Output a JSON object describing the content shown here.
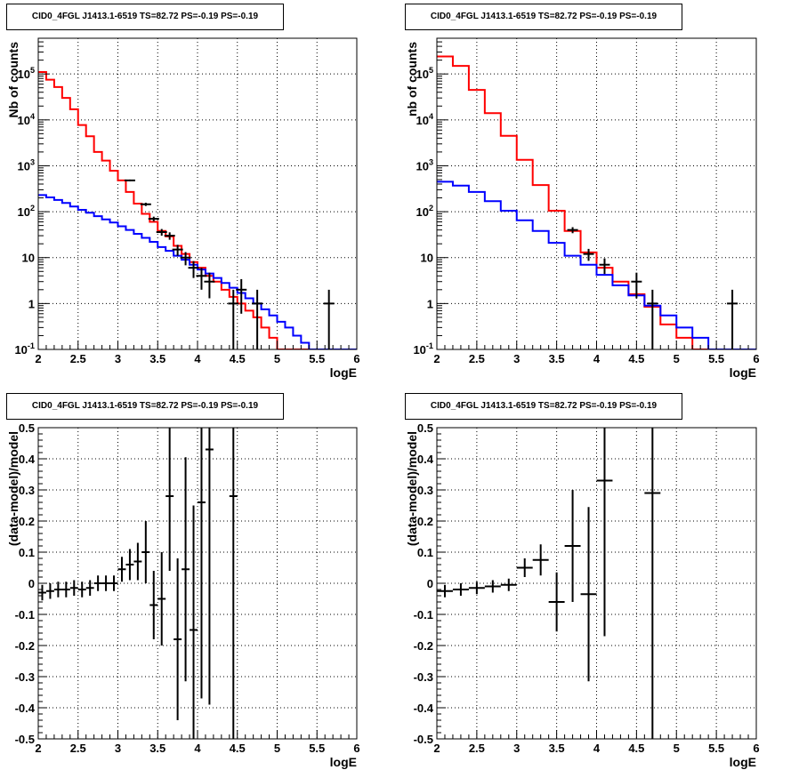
{
  "chart_data": [
    {
      "type": "line",
      "title": "CID0_4FGL J1413.1-6519 TS=82.72 PS=-0.19 PS=-0.19",
      "xlabel": "logE",
      "ylabel": "Nb of counts",
      "log_y": true,
      "xlim": [
        2,
        6
      ],
      "ylim": [
        0.1,
        600000
      ],
      "grid": true,
      "x_ticks": [
        "2",
        "2.5",
        "3",
        "3.5",
        "4",
        "4.5",
        "5",
        "5.5",
        "6"
      ],
      "y_ticks": [
        "10^{-1}",
        "1",
        "10",
        "10^{2}",
        "10^{3}",
        "10^{4}",
        "10^{5}"
      ],
      "bin_edges": [
        2,
        2.1,
        2.2,
        2.3,
        2.4,
        2.5,
        2.6,
        2.7,
        2.8,
        2.9,
        3,
        3.1,
        3.2,
        3.3,
        3.4,
        3.5,
        3.6,
        3.7,
        3.8,
        3.9,
        4,
        4.1,
        4.2,
        4.3,
        4.4,
        4.5,
        4.6,
        4.7,
        4.8,
        4.9,
        5,
        5.1,
        5.2,
        5.3,
        5.4,
        5.5,
        5.6,
        5.7,
        5.8,
        5.9,
        6
      ],
      "series": [
        {
          "color": "#ff0000",
          "values": [
            110000,
            75000,
            52000,
            30000,
            17000,
            7700,
            4400,
            2000,
            1300,
            780,
            480,
            270,
            150,
            90,
            60,
            38,
            29,
            18,
            12,
            8,
            6,
            4,
            3,
            2,
            1.4,
            1,
            0.7,
            0.5,
            0.3,
            0.18,
            0.1,
            0.1,
            0.1,
            0.1,
            0.1,
            0.1,
            0.1,
            0.1,
            0.1,
            0.1
          ]
        },
        {
          "color": "#0000ff",
          "values": [
            230,
            205,
            180,
            155,
            130,
            110,
            95,
            80,
            68,
            58,
            48,
            40,
            33,
            27,
            22,
            17,
            14,
            11,
            9,
            7,
            5.5,
            4.5,
            3.6,
            2.8,
            2.2,
            1.7,
            1.3,
            1,
            0.75,
            0.55,
            0.4,
            0.3,
            0.2,
            0.14,
            0.1,
            0.1,
            0.1,
            0.1,
            0.1,
            0.1
          ]
        }
      ],
      "points": [
        {
          "x": 3.15,
          "y": 480,
          "dy_low": 22,
          "dy_high": 22
        },
        {
          "x": 3.35,
          "y": 145,
          "dy_low": 12,
          "dy_high": 12
        },
        {
          "x": 3.45,
          "y": 70,
          "dy_low": 8,
          "dy_high": 8
        },
        {
          "x": 3.55,
          "y": 36,
          "dy_low": 6,
          "dy_high": 6
        },
        {
          "x": 3.65,
          "y": 30,
          "dy_low": 5.5,
          "dy_high": 5.5
        },
        {
          "x": 3.75,
          "y": 15,
          "dy_low": 4,
          "dy_high": 4
        },
        {
          "x": 3.85,
          "y": 10,
          "dy_low": 3.2,
          "dy_high": 3.2
        },
        {
          "x": 3.95,
          "y": 6,
          "dy_low": 2.4,
          "dy_high": 2.4
        },
        {
          "x": 4.05,
          "y": 4,
          "dy_low": 2,
          "dy_high": 2
        },
        {
          "x": 4.15,
          "y": 3,
          "dy_low": 1.7,
          "dy_high": 1.7
        },
        {
          "x": 4.45,
          "y": 1,
          "dy_low": 1,
          "dy_high": 1
        },
        {
          "x": 4.55,
          "y": 2,
          "dy_low": 1.4,
          "dy_high": 1.4
        },
        {
          "x": 4.75,
          "y": 1,
          "dy_low": 1,
          "dy_high": 1
        },
        {
          "x": 5.65,
          "y": 1,
          "dy_low": 1,
          "dy_high": 1
        }
      ]
    },
    {
      "type": "line",
      "title": "CID0_4FGL J1413.1-6519 TS=82.72 PS=-0.19 PS=-0.19",
      "xlabel": "logE",
      "ylabel": "nb of counts",
      "log_y": true,
      "xlim": [
        2,
        6
      ],
      "ylim": [
        0.1,
        600000
      ],
      "grid": true,
      "x_ticks": [
        "2",
        "2.5",
        "3",
        "3.5",
        "4",
        "4.5",
        "5",
        "5.5",
        "6"
      ],
      "y_ticks": [
        "10^{-1}",
        "1",
        "10",
        "10^{2}",
        "10^{3}",
        "10^{4}",
        "10^{5}"
      ],
      "bin_edges": [
        2,
        2.2,
        2.4,
        2.6,
        2.8,
        3,
        3.2,
        3.4,
        3.6,
        3.8,
        4,
        4.2,
        4.4,
        4.6,
        4.8,
        5,
        5.2,
        5.4,
        5.6,
        5.8,
        6
      ],
      "series": [
        {
          "color": "#ff0000",
          "values": [
            240000,
            150000,
            45000,
            14000,
            4500,
            1350,
            380,
            105,
            38,
            13,
            6,
            3,
            1.6,
            0.85,
            0.35,
            0.18,
            0.1,
            0.1,
            0.1,
            0.1
          ]
        },
        {
          "color": "#0000ff",
          "values": [
            450,
            370,
            270,
            170,
            105,
            65,
            38,
            21,
            11,
            7,
            4.2,
            2.5,
            1.5,
            0.9,
            0.55,
            0.3,
            0.18,
            0.1,
            0.1,
            0.1
          ]
        }
      ],
      "points": [
        {
          "x": 3.7,
          "y": 40,
          "dy_low": 6,
          "dy_high": 6
        },
        {
          "x": 3.9,
          "y": 12,
          "dy_low": 3.5,
          "dy_high": 3.5
        },
        {
          "x": 4.1,
          "y": 7,
          "dy_low": 2.6,
          "dy_high": 2.6
        },
        {
          "x": 4.5,
          "y": 3,
          "dy_low": 1.7,
          "dy_high": 1.7
        },
        {
          "x": 4.7,
          "y": 1,
          "dy_low": 1,
          "dy_high": 1
        },
        {
          "x": 5.7,
          "y": 1,
          "dy_low": 1,
          "dy_high": 1
        }
      ]
    },
    {
      "type": "scatter",
      "title": "CID0_4FGL J1413.1-6519 TS=82.72 PS=-0.19 PS=-0.19",
      "xlabel": "logE",
      "ylabel": "(data-model)/model",
      "log_y": false,
      "xlim": [
        2,
        6
      ],
      "ylim": [
        -0.5,
        0.5
      ],
      "grid": true,
      "x_ticks": [
        "2",
        "2.5",
        "3",
        "3.5",
        "4",
        "4.5",
        "5",
        "5.5",
        "6"
      ],
      "y_ticks": [
        "-0.5",
        "-0.4",
        "-0.3",
        "-0.2",
        "-0.1",
        "0",
        "0.1",
        "0.2",
        "0.3",
        "0.4",
        "0.5"
      ],
      "points": [
        {
          "x": 2.05,
          "y": -0.03,
          "dy_low": 0.025,
          "dy_high": 0.025,
          "dx": 0.05
        },
        {
          "x": 2.15,
          "y": -0.025,
          "dy_low": 0.025,
          "dy_high": 0.025,
          "dx": 0.05
        },
        {
          "x": 2.25,
          "y": -0.02,
          "dy_low": 0.025,
          "dy_high": 0.025,
          "dx": 0.05
        },
        {
          "x": 2.35,
          "y": -0.02,
          "dy_low": 0.025,
          "dy_high": 0.025,
          "dx": 0.05
        },
        {
          "x": 2.45,
          "y": -0.015,
          "dy_low": 0.025,
          "dy_high": 0.025,
          "dx": 0.05
        },
        {
          "x": 2.55,
          "y": -0.02,
          "dy_low": 0.025,
          "dy_high": 0.025,
          "dx": 0.05
        },
        {
          "x": 2.65,
          "y": -0.015,
          "dy_low": 0.025,
          "dy_high": 0.025,
          "dx": 0.05
        },
        {
          "x": 2.75,
          "y": 0.0,
          "dy_low": 0.025,
          "dy_high": 0.025,
          "dx": 0.05
        },
        {
          "x": 2.85,
          "y": 0.0,
          "dy_low": 0.025,
          "dy_high": 0.025,
          "dx": 0.05
        },
        {
          "x": 2.95,
          "y": 0.0,
          "dy_low": 0.025,
          "dy_high": 0.025,
          "dx": 0.05
        },
        {
          "x": 3.05,
          "y": 0.045,
          "dy_low": 0.04,
          "dy_high": 0.04,
          "dx": 0.05
        },
        {
          "x": 3.15,
          "y": 0.06,
          "dy_low": 0.05,
          "dy_high": 0.05,
          "dx": 0.05
        },
        {
          "x": 3.25,
          "y": 0.07,
          "dy_low": 0.06,
          "dy_high": 0.06,
          "dx": 0.05
        },
        {
          "x": 3.35,
          "y": 0.1,
          "dy_low": 0.1,
          "dy_high": 0.1,
          "dx": 0.05
        },
        {
          "x": 3.45,
          "y": -0.07,
          "dy_low": 0.11,
          "dy_high": 0.11,
          "dx": 0.05
        },
        {
          "x": 3.55,
          "y": -0.05,
          "dy_low": 0.15,
          "dy_high": 0.15,
          "dx": 0.05
        },
        {
          "x": 3.65,
          "y": 0.28,
          "dy_low": 0.24,
          "dy_high": 0.24,
          "dx": 0.05
        },
        {
          "x": 3.75,
          "y": -0.18,
          "dy_low": 0.26,
          "dy_high": 0.26,
          "dx": 0.05
        },
        {
          "x": 3.85,
          "y": 0.045,
          "dy_low": 0.36,
          "dy_high": 0.36,
          "dx": 0.05
        },
        {
          "x": 3.95,
          "y": -0.15,
          "dy_low": 0.4,
          "dy_high": 0.4,
          "dx": 0.05
        },
        {
          "x": 4.05,
          "y": 0.26,
          "dy_low": 0.63,
          "dy_high": 0.63,
          "dx": 0.05
        },
        {
          "x": 4.15,
          "y": 0.43,
          "dy_low": 0.82,
          "dy_high": 0.82,
          "dx": 0.05
        },
        {
          "x": 4.45,
          "y": 0.28,
          "dy_low": 1.0,
          "dy_high": 1.0,
          "dx": 0.05
        }
      ]
    },
    {
      "type": "scatter",
      "title": "CID0_4FGL J1413.1-6519 TS=82.72 PS=-0.19 PS=-0.19",
      "xlabel": "logE",
      "ylabel": "(data-model)/model",
      "log_y": false,
      "xlim": [
        2,
        6
      ],
      "ylim": [
        -0.5,
        0.5
      ],
      "grid": true,
      "x_ticks": [
        "2",
        "2.5",
        "3",
        "3.5",
        "4",
        "4.5",
        "5",
        "5.5",
        "6"
      ],
      "y_ticks": [
        "-0.5",
        "-0.4",
        "-0.3",
        "-0.2",
        "-0.1",
        "0",
        "0.1",
        "0.2",
        "0.3",
        "0.4",
        "0.5"
      ],
      "points": [
        {
          "x": 2.1,
          "y": -0.025,
          "dy_low": 0.02,
          "dy_high": 0.02,
          "dx": 0.1
        },
        {
          "x": 2.3,
          "y": -0.02,
          "dy_low": 0.02,
          "dy_high": 0.02,
          "dx": 0.1
        },
        {
          "x": 2.5,
          "y": -0.015,
          "dy_low": 0.02,
          "dy_high": 0.02,
          "dx": 0.1
        },
        {
          "x": 2.7,
          "y": -0.01,
          "dy_low": 0.02,
          "dy_high": 0.02,
          "dx": 0.1
        },
        {
          "x": 2.9,
          "y": -0.005,
          "dy_low": 0.02,
          "dy_high": 0.02,
          "dx": 0.1
        },
        {
          "x": 3.1,
          "y": 0.05,
          "dy_low": 0.03,
          "dy_high": 0.03,
          "dx": 0.1
        },
        {
          "x": 3.3,
          "y": 0.075,
          "dy_low": 0.05,
          "dy_high": 0.05,
          "dx": 0.1
        },
        {
          "x": 3.5,
          "y": -0.06,
          "dy_low": 0.095,
          "dy_high": 0.095,
          "dx": 0.1
        },
        {
          "x": 3.7,
          "y": 0.12,
          "dy_low": 0.18,
          "dy_high": 0.18,
          "dx": 0.1
        },
        {
          "x": 3.9,
          "y": -0.035,
          "dy_low": 0.28,
          "dy_high": 0.28,
          "dx": 0.1
        },
        {
          "x": 4.1,
          "y": 0.33,
          "dy_low": 0.5,
          "dy_high": 0.5,
          "dx": 0.1
        },
        {
          "x": 4.7,
          "y": 0.29,
          "dy_low": 1.0,
          "dy_high": 1.0,
          "dx": 0.1
        }
      ]
    }
  ]
}
